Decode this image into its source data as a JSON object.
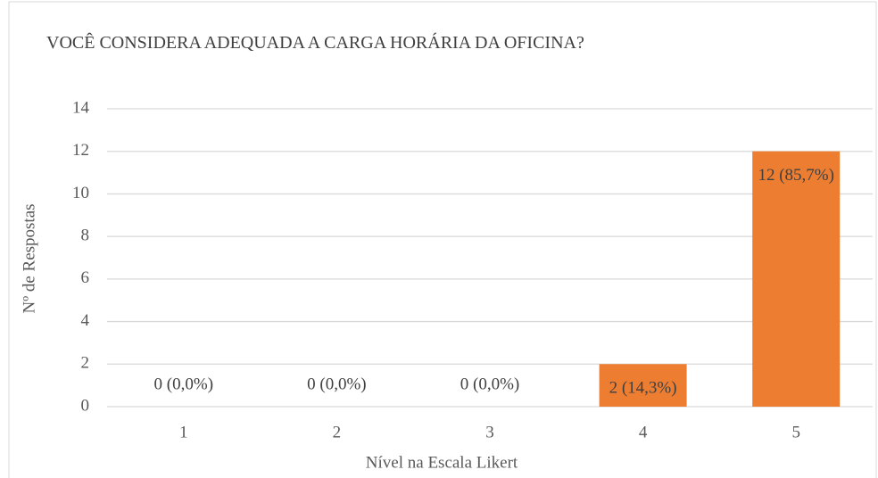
{
  "chart_data": {
    "type": "bar",
    "title": "VOCÊ CONSIDERA ADEQUADA A CARGA HORÁRIA DA OFICINA?",
    "x_label": "Nível na Escala Likert",
    "y_label": "Nº de Respostas",
    "categories": [
      "1",
      "2",
      "3",
      "4",
      "5"
    ],
    "values": [
      0,
      0,
      0,
      2,
      12
    ],
    "value_labels": [
      "0 (0,0%)",
      "0 (0,0%)",
      "0 (0,0%)",
      "2 (14,3%)",
      "12 (85,7%)"
    ],
    "color": "#ed7d31",
    "ylim": [
      0,
      14
    ],
    "yticks": [
      0,
      2,
      4,
      6,
      8,
      10,
      12,
      14
    ],
    "grid": true
  }
}
